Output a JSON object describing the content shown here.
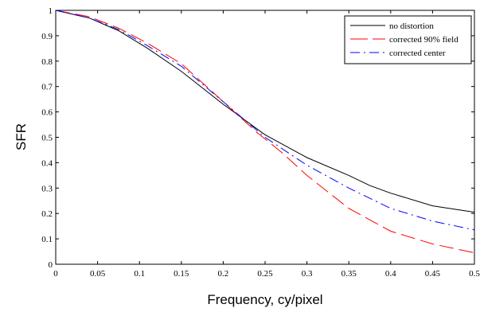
{
  "chart_data": {
    "type": "line",
    "title": "",
    "xlabel": "Frequency, cy/pixel",
    "ylabel": "SFR",
    "xlim": [
      0,
      0.5
    ],
    "ylim": [
      0,
      1
    ],
    "x_ticks": [
      "0",
      "0.05",
      "0.1",
      "0.15",
      "0.2",
      "0.25",
      "0.3",
      "0.35",
      "0.4",
      "0.45",
      "0.5"
    ],
    "y_ticks": [
      "0",
      "0.1",
      "0.2",
      "0.3",
      "0.4",
      "0.5",
      "0.6",
      "0.7",
      "0.8",
      "0.9",
      "1"
    ],
    "grid": false,
    "legend_position": "top-right",
    "series": [
      {
        "name": "no distortion",
        "color": "#000000",
        "style": "solid",
        "x": [
          0,
          0.04,
          0.075,
          0.11,
          0.15,
          0.2,
          0.25,
          0.3,
          0.35,
          0.375,
          0.4,
          0.45,
          0.5
        ],
        "y": [
          1.0,
          0.97,
          0.92,
          0.85,
          0.76,
          0.63,
          0.51,
          0.42,
          0.35,
          0.31,
          0.28,
          0.23,
          0.205
        ]
      },
      {
        "name": "corrected 90% field",
        "color": "#ff0000",
        "style": "longdash",
        "x": [
          0,
          0.04,
          0.075,
          0.11,
          0.15,
          0.2,
          0.24,
          0.27,
          0.3,
          0.35,
          0.4,
          0.45,
          0.5
        ],
        "y": [
          1.0,
          0.975,
          0.93,
          0.87,
          0.79,
          0.64,
          0.52,
          0.44,
          0.35,
          0.22,
          0.13,
          0.08,
          0.045
        ]
      },
      {
        "name": "corrected center",
        "color": "#0000ff",
        "style": "dashdot",
        "x": [
          0,
          0.04,
          0.075,
          0.11,
          0.15,
          0.2,
          0.25,
          0.3,
          0.35,
          0.4,
          0.45,
          0.5
        ],
        "y": [
          1.0,
          0.97,
          0.925,
          0.86,
          0.78,
          0.64,
          0.5,
          0.39,
          0.3,
          0.22,
          0.17,
          0.135
        ]
      }
    ]
  }
}
